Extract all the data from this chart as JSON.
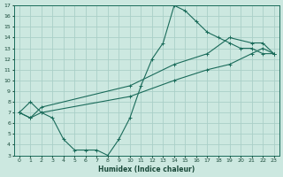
{
  "xlabel": "Humidex (Indice chaleur)",
  "bg_color": "#cce8e0",
  "grid_color": "#aacfc8",
  "line_color": "#1a6b5a",
  "xlim": [
    -0.5,
    23.5
  ],
  "ylim": [
    3,
    17
  ],
  "xticks": [
    0,
    1,
    2,
    3,
    4,
    5,
    6,
    7,
    8,
    9,
    10,
    11,
    12,
    13,
    14,
    15,
    16,
    17,
    18,
    19,
    20,
    21,
    22,
    23
  ],
  "yticks": [
    3,
    4,
    5,
    6,
    7,
    8,
    9,
    10,
    11,
    12,
    13,
    14,
    15,
    16,
    17
  ],
  "line1_x": [
    0,
    1,
    2,
    3,
    4,
    5,
    6,
    7,
    8,
    9,
    10,
    11,
    12,
    13,
    14,
    15,
    16,
    17,
    18,
    19,
    20,
    21,
    22,
    23
  ],
  "line1_y": [
    7,
    8,
    7,
    6.5,
    4.5,
    3.5,
    3.5,
    3.5,
    3.0,
    4.5,
    6.5,
    9.5,
    12,
    13.5,
    17,
    16.5,
    15.5,
    14.5,
    14,
    13.5,
    13,
    13,
    12.5,
    12.5
  ],
  "line2_x": [
    0,
    1,
    2,
    10,
    14,
    17,
    19,
    21,
    22,
    23
  ],
  "line2_y": [
    7,
    6.5,
    7,
    8.5,
    10,
    11,
    11.5,
    12.5,
    13,
    12.5
  ],
  "line3_x": [
    0,
    1,
    2,
    10,
    14,
    17,
    19,
    21,
    22,
    23
  ],
  "line3_y": [
    7,
    6.5,
    7.5,
    9.5,
    11.5,
    12.5,
    14,
    13.5,
    13.5,
    12.5
  ]
}
